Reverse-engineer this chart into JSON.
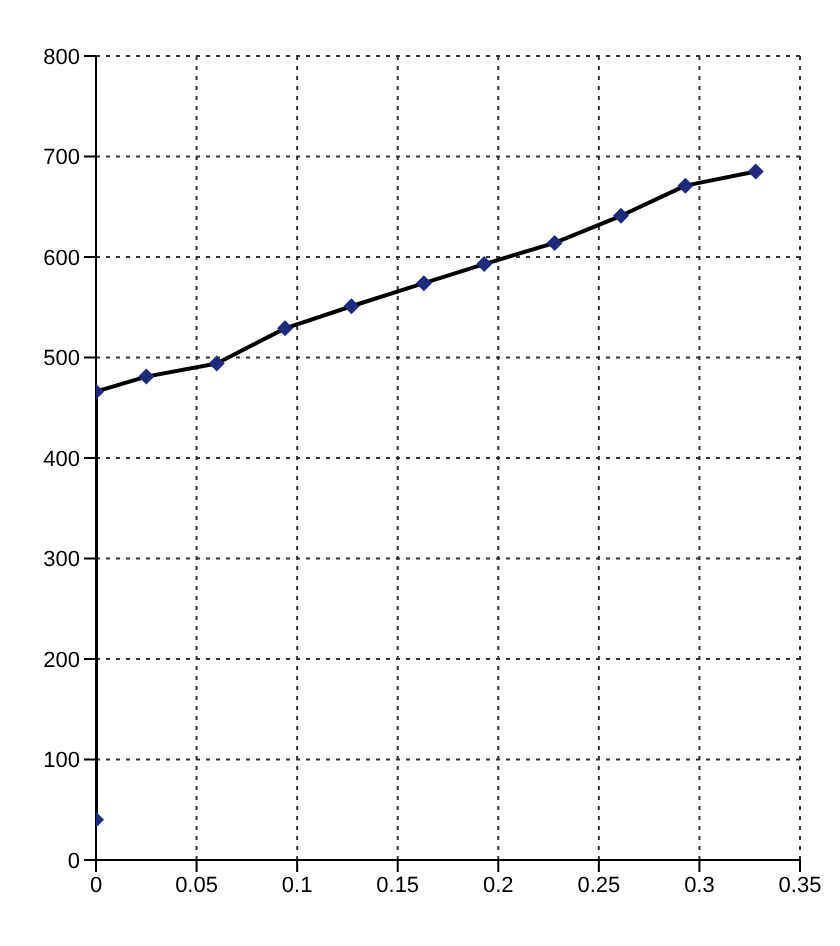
{
  "chart_data": {
    "type": "line",
    "x": [
      0,
      0,
      0.025,
      0.06,
      0.094,
      0.127,
      0.163,
      0.193,
      0.228,
      0.261,
      0.293,
      0.328
    ],
    "series": [
      {
        "color": "#000000",
        "values": [
          40,
          466,
          481,
          494,
          529,
          551,
          574,
          593,
          614,
          641,
          671,
          685
        ]
      }
    ],
    "xlim": [
      0,
      0.35
    ],
    "xticks": [
      0,
      0.05,
      0.1,
      0.15,
      0.2,
      0.25,
      0.3,
      0.35
    ],
    "ylim": [
      0,
      800
    ],
    "yticks": [
      0,
      100,
      200,
      300,
      400,
      500,
      600,
      700,
      800
    ],
    "grid": true,
    "marker": "diamond",
    "line_style": "solid"
  }
}
